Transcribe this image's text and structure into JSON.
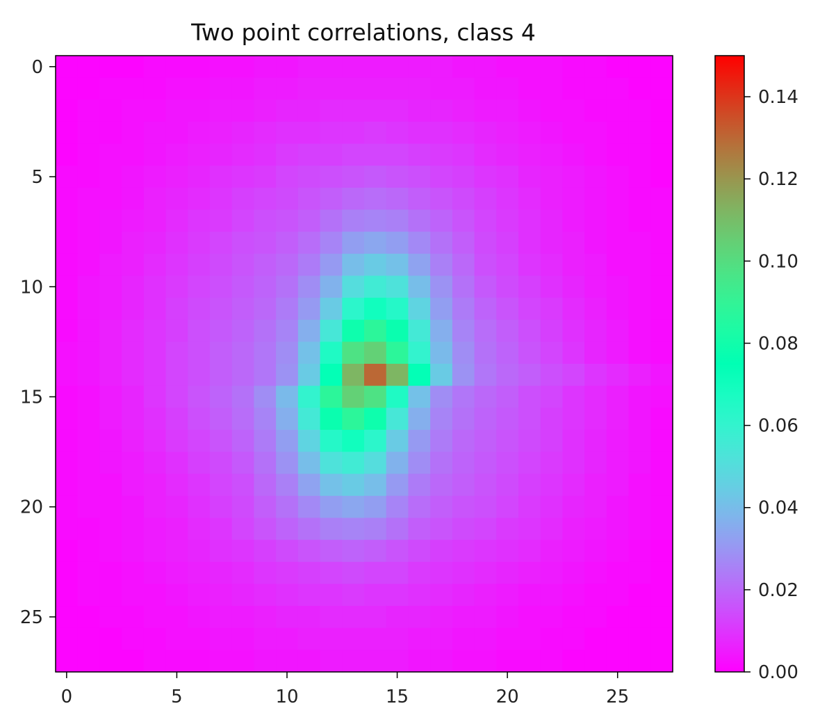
{
  "chart_data": {
    "type": "heatmap",
    "title": "Two point correlations, class 4",
    "xlabel": "",
    "ylabel": "",
    "grid_size": [
      28,
      28
    ],
    "x_ticks": [
      0,
      5,
      10,
      15,
      20,
      25
    ],
    "y_ticks": [
      0,
      5,
      10,
      15,
      20,
      25
    ],
    "x_tick_labels": [
      "0",
      "5",
      "10",
      "15",
      "20",
      "25"
    ],
    "y_tick_labels": [
      "0",
      "5",
      "10",
      "15",
      "20",
      "25"
    ],
    "colorbar": {
      "colormap": "rainbow",
      "range": [
        0.0,
        0.15
      ],
      "ticks": [
        0.0,
        0.02,
        0.04,
        0.06,
        0.08,
        0.1,
        0.12,
        0.14
      ],
      "tick_labels": [
        "0.00",
        "0.02",
        "0.04",
        "0.06",
        "0.08",
        "0.10",
        "0.12",
        "0.14"
      ]
    },
    "grid": false,
    "peak": {
      "row": 14,
      "col": 14,
      "value": 0.13
    },
    "values": [
      [
        0.001,
        0.001,
        0.001,
        0.001,
        0.002,
        0.002,
        0.002,
        0.003,
        0.003,
        0.004,
        0.004,
        0.005,
        0.005,
        0.005,
        0.005,
        0.005,
        0.005,
        0.005,
        0.004,
        0.004,
        0.003,
        0.003,
        0.003,
        0.002,
        0.002,
        0.001,
        0.001,
        0.001
      ],
      [
        0.001,
        0.001,
        0.002,
        0.002,
        0.002,
        0.003,
        0.003,
        0.004,
        0.004,
        0.005,
        0.005,
        0.006,
        0.006,
        0.006,
        0.006,
        0.006,
        0.006,
        0.005,
        0.005,
        0.004,
        0.004,
        0.003,
        0.003,
        0.002,
        0.002,
        0.002,
        0.001,
        0.001
      ],
      [
        0.001,
        0.002,
        0.002,
        0.003,
        0.003,
        0.004,
        0.004,
        0.005,
        0.005,
        0.006,
        0.007,
        0.007,
        0.008,
        0.008,
        0.008,
        0.008,
        0.007,
        0.007,
        0.006,
        0.005,
        0.005,
        0.004,
        0.003,
        0.003,
        0.002,
        0.002,
        0.002,
        0.001
      ],
      [
        0.001,
        0.002,
        0.002,
        0.003,
        0.004,
        0.004,
        0.005,
        0.006,
        0.007,
        0.008,
        0.009,
        0.009,
        0.01,
        0.01,
        0.011,
        0.01,
        0.009,
        0.009,
        0.008,
        0.007,
        0.006,
        0.005,
        0.004,
        0.003,
        0.003,
        0.002,
        0.002,
        0.001
      ],
      [
        0.001,
        0.002,
        0.003,
        0.003,
        0.004,
        0.005,
        0.006,
        0.007,
        0.008,
        0.009,
        0.011,
        0.012,
        0.012,
        0.013,
        0.013,
        0.013,
        0.012,
        0.011,
        0.01,
        0.008,
        0.007,
        0.006,
        0.005,
        0.004,
        0.003,
        0.002,
        0.002,
        0.001
      ],
      [
        0.002,
        0.002,
        0.003,
        0.004,
        0.005,
        0.006,
        0.007,
        0.009,
        0.01,
        0.011,
        0.013,
        0.014,
        0.015,
        0.016,
        0.017,
        0.016,
        0.015,
        0.013,
        0.012,
        0.01,
        0.009,
        0.007,
        0.006,
        0.005,
        0.004,
        0.003,
        0.002,
        0.001
      ],
      [
        0.002,
        0.003,
        0.003,
        0.004,
        0.006,
        0.007,
        0.008,
        0.01,
        0.012,
        0.013,
        0.014,
        0.016,
        0.018,
        0.02,
        0.021,
        0.02,
        0.018,
        0.016,
        0.014,
        0.012,
        0.01,
        0.008,
        0.006,
        0.005,
        0.004,
        0.003,
        0.002,
        0.002
      ],
      [
        0.002,
        0.003,
        0.004,
        0.005,
        0.006,
        0.008,
        0.01,
        0.011,
        0.013,
        0.015,
        0.016,
        0.018,
        0.022,
        0.025,
        0.026,
        0.025,
        0.022,
        0.019,
        0.016,
        0.013,
        0.011,
        0.009,
        0.007,
        0.005,
        0.004,
        0.003,
        0.002,
        0.002
      ],
      [
        0.002,
        0.003,
        0.004,
        0.006,
        0.007,
        0.009,
        0.011,
        0.013,
        0.015,
        0.016,
        0.018,
        0.021,
        0.026,
        0.032,
        0.034,
        0.032,
        0.027,
        0.022,
        0.018,
        0.014,
        0.012,
        0.009,
        0.007,
        0.006,
        0.004,
        0.003,
        0.003,
        0.002
      ],
      [
        0.002,
        0.003,
        0.005,
        0.006,
        0.008,
        0.01,
        0.012,
        0.014,
        0.016,
        0.018,
        0.02,
        0.024,
        0.031,
        0.04,
        0.044,
        0.041,
        0.033,
        0.025,
        0.02,
        0.015,
        0.013,
        0.01,
        0.008,
        0.006,
        0.005,
        0.003,
        0.003,
        0.002
      ],
      [
        0.002,
        0.004,
        0.005,
        0.007,
        0.009,
        0.011,
        0.013,
        0.015,
        0.017,
        0.019,
        0.022,
        0.028,
        0.037,
        0.05,
        0.056,
        0.052,
        0.04,
        0.029,
        0.022,
        0.017,
        0.014,
        0.012,
        0.009,
        0.007,
        0.005,
        0.004,
        0.003,
        0.002
      ],
      [
        0.002,
        0.004,
        0.005,
        0.007,
        0.009,
        0.012,
        0.014,
        0.016,
        0.018,
        0.02,
        0.024,
        0.031,
        0.044,
        0.062,
        0.07,
        0.064,
        0.047,
        0.032,
        0.024,
        0.019,
        0.016,
        0.013,
        0.011,
        0.008,
        0.006,
        0.004,
        0.003,
        0.002
      ],
      [
        0.002,
        0.004,
        0.006,
        0.008,
        0.01,
        0.012,
        0.015,
        0.017,
        0.019,
        0.022,
        0.026,
        0.036,
        0.054,
        0.079,
        0.088,
        0.078,
        0.055,
        0.036,
        0.026,
        0.021,
        0.018,
        0.015,
        0.012,
        0.009,
        0.007,
        0.005,
        0.003,
        0.002
      ],
      [
        0.003,
        0.004,
        0.006,
        0.008,
        0.01,
        0.013,
        0.015,
        0.018,
        0.02,
        0.023,
        0.028,
        0.041,
        0.066,
        0.098,
        0.104,
        0.088,
        0.06,
        0.039,
        0.028,
        0.022,
        0.019,
        0.016,
        0.013,
        0.01,
        0.007,
        0.005,
        0.003,
        0.002
      ],
      [
        0.003,
        0.004,
        0.006,
        0.008,
        0.01,
        0.013,
        0.015,
        0.018,
        0.02,
        0.023,
        0.029,
        0.044,
        0.074,
        0.112,
        0.13,
        0.112,
        0.074,
        0.044,
        0.029,
        0.023,
        0.02,
        0.018,
        0.015,
        0.013,
        0.01,
        0.008,
        0.006,
        0.004
      ],
      [
        0.002,
        0.003,
        0.005,
        0.007,
        0.01,
        0.013,
        0.016,
        0.019,
        0.022,
        0.028,
        0.039,
        0.06,
        0.088,
        0.104,
        0.098,
        0.066,
        0.041,
        0.028,
        0.023,
        0.02,
        0.018,
        0.015,
        0.013,
        0.01,
        0.008,
        0.006,
        0.004,
        0.003
      ],
      [
        0.002,
        0.003,
        0.005,
        0.007,
        0.009,
        0.012,
        0.015,
        0.018,
        0.021,
        0.026,
        0.036,
        0.055,
        0.078,
        0.088,
        0.079,
        0.054,
        0.036,
        0.026,
        0.022,
        0.019,
        0.017,
        0.015,
        0.012,
        0.01,
        0.008,
        0.006,
        0.004,
        0.002
      ],
      [
        0.002,
        0.003,
        0.004,
        0.006,
        0.008,
        0.011,
        0.013,
        0.016,
        0.019,
        0.024,
        0.032,
        0.047,
        0.064,
        0.07,
        0.062,
        0.044,
        0.031,
        0.024,
        0.02,
        0.018,
        0.016,
        0.014,
        0.012,
        0.009,
        0.007,
        0.005,
        0.004,
        0.002
      ],
      [
        0.002,
        0.003,
        0.004,
        0.005,
        0.007,
        0.009,
        0.012,
        0.014,
        0.017,
        0.022,
        0.029,
        0.04,
        0.052,
        0.056,
        0.05,
        0.037,
        0.028,
        0.022,
        0.019,
        0.017,
        0.015,
        0.013,
        0.011,
        0.009,
        0.007,
        0.005,
        0.004,
        0.002
      ],
      [
        0.002,
        0.003,
        0.003,
        0.005,
        0.006,
        0.008,
        0.01,
        0.013,
        0.015,
        0.02,
        0.025,
        0.033,
        0.041,
        0.044,
        0.04,
        0.031,
        0.024,
        0.02,
        0.018,
        0.016,
        0.014,
        0.012,
        0.01,
        0.008,
        0.006,
        0.005,
        0.003,
        0.002
      ],
      [
        0.002,
        0.003,
        0.003,
        0.004,
        0.006,
        0.007,
        0.009,
        0.012,
        0.014,
        0.018,
        0.022,
        0.027,
        0.032,
        0.034,
        0.032,
        0.026,
        0.021,
        0.018,
        0.016,
        0.015,
        0.013,
        0.011,
        0.009,
        0.007,
        0.006,
        0.004,
        0.003,
        0.002
      ],
      [
        0.002,
        0.002,
        0.003,
        0.004,
        0.005,
        0.006,
        0.008,
        0.01,
        0.013,
        0.016,
        0.019,
        0.022,
        0.025,
        0.026,
        0.025,
        0.022,
        0.018,
        0.016,
        0.014,
        0.013,
        0.011,
        0.01,
        0.008,
        0.006,
        0.005,
        0.004,
        0.003,
        0.002
      ],
      [
        0.001,
        0.002,
        0.003,
        0.004,
        0.005,
        0.006,
        0.007,
        0.009,
        0.01,
        0.012,
        0.014,
        0.016,
        0.018,
        0.019,
        0.018,
        0.016,
        0.014,
        0.012,
        0.011,
        0.01,
        0.009,
        0.008,
        0.006,
        0.005,
        0.004,
        0.003,
        0.002,
        0.001
      ],
      [
        0.001,
        0.002,
        0.002,
        0.003,
        0.004,
        0.005,
        0.006,
        0.007,
        0.008,
        0.01,
        0.011,
        0.012,
        0.013,
        0.014,
        0.013,
        0.013,
        0.011,
        0.01,
        0.009,
        0.008,
        0.007,
        0.006,
        0.005,
        0.004,
        0.003,
        0.002,
        0.002,
        0.001
      ],
      [
        0.001,
        0.002,
        0.002,
        0.003,
        0.003,
        0.004,
        0.005,
        0.006,
        0.007,
        0.008,
        0.009,
        0.01,
        0.01,
        0.011,
        0.01,
        0.01,
        0.009,
        0.008,
        0.007,
        0.006,
        0.005,
        0.004,
        0.004,
        0.003,
        0.002,
        0.002,
        0.001,
        0.001
      ],
      [
        0.001,
        0.001,
        0.002,
        0.002,
        0.003,
        0.003,
        0.004,
        0.005,
        0.005,
        0.006,
        0.007,
        0.007,
        0.008,
        0.008,
        0.008,
        0.007,
        0.007,
        0.006,
        0.005,
        0.005,
        0.004,
        0.003,
        0.003,
        0.002,
        0.002,
        0.001,
        0.001,
        0.001
      ],
      [
        0.001,
        0.001,
        0.001,
        0.002,
        0.002,
        0.003,
        0.003,
        0.004,
        0.004,
        0.005,
        0.005,
        0.006,
        0.006,
        0.006,
        0.006,
        0.006,
        0.005,
        0.005,
        0.004,
        0.004,
        0.003,
        0.003,
        0.002,
        0.002,
        0.001,
        0.001,
        0.001,
        0.001
      ],
      [
        0.001,
        0.001,
        0.001,
        0.001,
        0.002,
        0.002,
        0.002,
        0.003,
        0.003,
        0.004,
        0.004,
        0.004,
        0.005,
        0.005,
        0.005,
        0.005,
        0.004,
        0.004,
        0.003,
        0.003,
        0.002,
        0.002,
        0.002,
        0.001,
        0.001,
        0.001,
        0.001,
        0.001
      ]
    ]
  }
}
